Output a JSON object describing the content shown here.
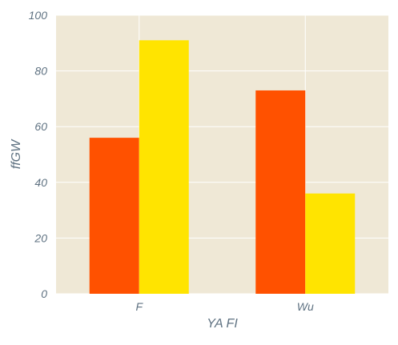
{
  "chart_data": {
    "type": "bar",
    "categories": [
      "F",
      "Wu"
    ],
    "series": [
      {
        "values": [
          56,
          91
        ]
      },
      {
        "values": [
          73,
          36
        ]
      }
    ],
    "xlabel": "YA FI",
    "ylabel": "ffGW",
    "ylim": [
      0,
      100
    ],
    "yticks": [
      "0",
      "20",
      "40",
      "60",
      "80",
      "100"
    ],
    "grid": true,
    "legend": "none"
  },
  "colors": {
    "plot_background": "#efe8d6",
    "grid": "#ffffff",
    "bar_left": "#ff5100",
    "bar_right": "#ffe400",
    "text": "#5f7282"
  }
}
